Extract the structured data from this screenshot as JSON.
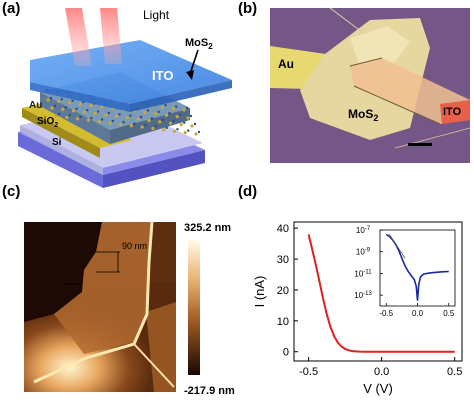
{
  "panels": {
    "a": {
      "label": "(a)",
      "light_label": "Light",
      "top_label": "MoS",
      "top_label_sub": "2",
      "ito_label": "ITO",
      "au_label": "Au",
      "sio2_label": "SiO",
      "sio2_label_sub": "2",
      "si_label": "Si"
    },
    "b": {
      "label": "(b)",
      "au_label": "Au",
      "mos2_label": "MoS",
      "mos2_label_sub": "2",
      "ito_label": "ITO"
    },
    "c": {
      "label": "(c)",
      "thickness_label": "90 nm",
      "scale_max": "325.2 nm",
      "scale_min": "-217.9 nm"
    },
    "d": {
      "label": "(d)"
    }
  },
  "colors": {
    "ito": "#4a8fe8",
    "substrate": "#7b7be0",
    "si_side": "#5a5ac8",
    "au": "#b8a020",
    "main_curve": "#e0201a",
    "inset_curve": "#1a2aa0",
    "optical_bg": "#7a5a8a",
    "afm_dark": "#3a1a08",
    "afm_bright": "#fff4c0"
  },
  "chart_data": {
    "type": "line",
    "title": "",
    "xlabel": "V (V)",
    "ylabel": "I (nA)",
    "xlim": [
      -0.6,
      0.55
    ],
    "ylim": [
      -3,
      42
    ],
    "xticks": [
      "-0.5",
      "0.0",
      "0.5"
    ],
    "xtick_values": [
      -0.5,
      0.0,
      0.5
    ],
    "yticks": [
      "0",
      "10",
      "20",
      "30",
      "40"
    ],
    "ytick_values": [
      0,
      10,
      20,
      30,
      40
    ],
    "series": [
      {
        "x": [
          -0.5,
          -0.475,
          -0.45,
          -0.425,
          -0.4,
          -0.375,
          -0.35,
          -0.325,
          -0.3,
          -0.275,
          -0.25,
          -0.225,
          -0.2,
          -0.15,
          -0.1,
          0.0,
          0.1,
          0.2,
          0.3,
          0.4,
          0.5
        ],
        "y": [
          38.0,
          33.0,
          28.0,
          22.5,
          17.0,
          12.0,
          8.0,
          5.0,
          3.0,
          1.7,
          0.9,
          0.45,
          0.2,
          0.05,
          0.01,
          0.0,
          0.0,
          0.0,
          0.0,
          0.0,
          0.0
        ]
      }
    ],
    "inset": {
      "type": "line",
      "scale": "log",
      "xlim": [
        -0.6,
        0.6
      ],
      "xticks": [
        "-0.5",
        "0.0",
        "0.5"
      ],
      "xtick_values": [
        -0.5,
        0.0,
        0.5
      ],
      "yticks": [
        "10",
        "10",
        "10",
        "10"
      ],
      "ytick_exponents": [
        "-7",
        "-9",
        "-11",
        "-13"
      ],
      "ytick_values": [
        -7,
        -9,
        -11,
        -13
      ],
      "ylim_log": [
        -14,
        -7
      ],
      "series": [
        {
          "x": [
            -0.5,
            -0.45,
            -0.4,
            -0.35,
            -0.3,
            -0.25,
            -0.2,
            -0.15,
            -0.1,
            -0.05,
            -0.02,
            0.0,
            0.02,
            0.05,
            0.1,
            0.2,
            0.3,
            0.4,
            0.5
          ],
          "y_log": [
            -7.4,
            -7.6,
            -7.9,
            -8.3,
            -8.9,
            -9.6,
            -10.3,
            -10.8,
            -11.2,
            -11.6,
            -12.2,
            -13.5,
            -12.0,
            -11.3,
            -11.05,
            -10.95,
            -10.9,
            -10.85,
            -10.82
          ]
        }
      ],
      "fit_line": {
        "x": [
          -0.45,
          -0.2
        ],
        "y_log": [
          -7.4,
          -9.6
        ]
      }
    }
  }
}
